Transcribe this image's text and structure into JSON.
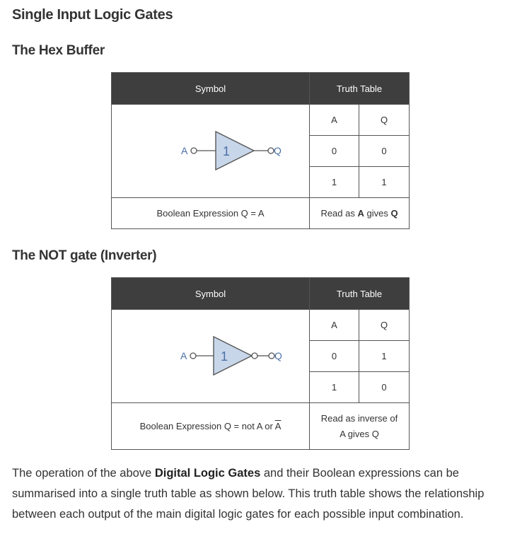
{
  "page_title": "Single Input Logic Gates",
  "colors": {
    "gate_fill": "#c8d6ea",
    "header_bg": "#3e3e3e",
    "label_color": "#4a6fa5"
  },
  "buffer": {
    "heading": "The Hex Buffer",
    "symbol_header": "Symbol",
    "truth_header": "Truth Table",
    "col_a": "A",
    "col_q": "Q",
    "input_label": "A",
    "output_label": "Q",
    "gate_label": "1",
    "rows": [
      {
        "a": "0",
        "q": "0"
      },
      {
        "a": "1",
        "q": "1"
      }
    ],
    "expression": "Boolean Expression Q = A",
    "read_prefix": "Read as ",
    "read_a": "A",
    "read_mid": " gives ",
    "read_q": "Q"
  },
  "not_gate": {
    "heading": "The NOT gate (Inverter)",
    "symbol_header": "Symbol",
    "truth_header": "Truth Table",
    "col_a": "A",
    "col_q": "Q",
    "input_label": "A",
    "output_label": "Q",
    "gate_label": "1",
    "rows": [
      {
        "a": "0",
        "q": "1"
      },
      {
        "a": "1",
        "q": "0"
      }
    ],
    "expression_prefix": "Boolean Expression Q = not A or ",
    "expression_bar": "A",
    "read_line1": "Read as inverse of",
    "read_line2": "A gives Q"
  },
  "paragraph": {
    "text_1": "The operation of the above ",
    "bold": "Digital Logic Gates",
    "text_2": " and their Boolean expressions can be summarised into a single truth table as shown below. This truth table shows the relationship between each output of the main digital logic gates for each possible input combination."
  }
}
